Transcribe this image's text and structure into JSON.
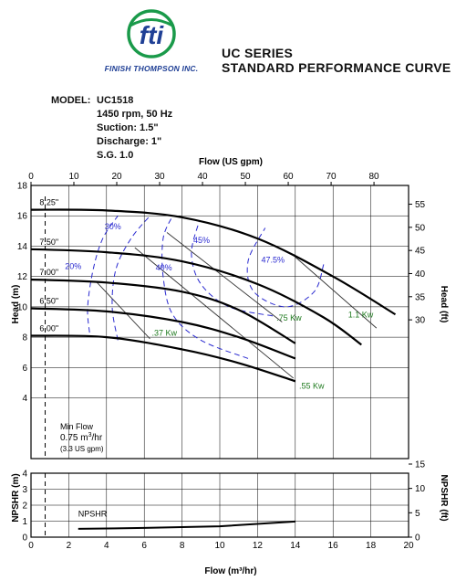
{
  "header": {
    "brand": "FINISH THOMPSON INC.",
    "logo_text": "fti",
    "series": "UC SERIES",
    "title": "STANDARD PERFORMANCE CURVE"
  },
  "model": {
    "label": "MODEL:",
    "name": "UC1518",
    "specs": [
      "1450 rpm, 50 Hz",
      "Suction: 1.5\"",
      "Discharge: 1\"",
      "S.G. 1.0"
    ]
  },
  "colors": {
    "curve": "#000000",
    "efficiency": "#2a2ad0",
    "power": "#1e7a1e",
    "logo_green": "#1a9a4a",
    "logo_blue": "#1f3f95"
  },
  "chart_data": {
    "type": "line",
    "xlabel": "Flow (m³/hr)",
    "x2label": "Flow (US gpm)",
    "ylabel": "Head (m)",
    "y2label": "Head (ft)",
    "xlim": [
      0,
      20
    ],
    "ylim": [
      0,
      18
    ],
    "x_ticks": [
      0,
      2,
      4,
      6,
      8,
      10,
      12,
      14,
      16,
      18,
      20
    ],
    "y_ticks": [
      4,
      6,
      8,
      10,
      12,
      14,
      16,
      18
    ],
    "gpm_ticks": [
      0,
      10,
      20,
      30,
      40,
      50,
      60,
      70,
      80
    ],
    "ft_ticks": [
      30,
      35,
      40,
      45,
      50,
      55
    ],
    "grid": true,
    "impeller_curves": [
      {
        "name": "8.25\"",
        "points": [
          [
            0,
            16.4
          ],
          [
            4,
            16.35
          ],
          [
            8,
            15.9
          ],
          [
            12,
            14.5
          ],
          [
            16,
            12.0
          ],
          [
            19.3,
            9.5
          ]
        ]
      },
      {
        "name": "7.50\"",
        "points": [
          [
            0,
            13.8
          ],
          [
            4,
            13.6
          ],
          [
            8,
            13.0
          ],
          [
            12,
            11.5
          ],
          [
            15.5,
            9.3
          ],
          [
            17.5,
            7.5
          ]
        ]
      },
      {
        "name": "7.00\"",
        "points": [
          [
            0,
            11.8
          ],
          [
            4,
            11.6
          ],
          [
            8,
            11.0
          ],
          [
            11,
            9.8
          ],
          [
            14,
            7.6
          ]
        ]
      },
      {
        "name": "6.50\"",
        "points": [
          [
            0,
            9.9
          ],
          [
            4,
            9.7
          ],
          [
            8,
            9.0
          ],
          [
            11,
            8.0
          ],
          [
            14,
            6.6
          ]
        ]
      },
      {
        "name": "6.00\"",
        "points": [
          [
            0,
            8.1
          ],
          [
            4,
            8.0
          ],
          [
            8,
            7.2
          ],
          [
            11,
            6.3
          ],
          [
            14,
            5.1
          ]
        ]
      }
    ],
    "efficiency_curves": [
      {
        "name": "20%",
        "points": [
          [
            3.1,
            8.3
          ],
          [
            3.0,
            10.0
          ],
          [
            3.3,
            12.5
          ],
          [
            3.8,
            14.5
          ],
          [
            4.6,
            16.0
          ]
        ]
      },
      {
        "name": "30%",
        "points": [
          [
            4.6,
            7.8
          ],
          [
            4.3,
            10.0
          ],
          [
            4.5,
            12.5
          ],
          [
            5.3,
            14.5
          ],
          [
            6.3,
            16.0
          ]
        ]
      },
      {
        "name": "40%",
        "points": [
          [
            11.5,
            6.6
          ],
          [
            9.0,
            7.8
          ],
          [
            7.5,
            9.5
          ],
          [
            7.0,
            12.0
          ],
          [
            7.0,
            14.5
          ],
          [
            7.5,
            16.0
          ]
        ]
      },
      {
        "name": "45%",
        "points": [
          [
            12.8,
            9.4
          ],
          [
            10.5,
            10.0
          ],
          [
            9.0,
            11.5
          ],
          [
            8.5,
            13.5
          ],
          [
            8.9,
            15.6
          ]
        ]
      },
      {
        "name": "47.5%",
        "points": [
          [
            15.5,
            12.8
          ],
          [
            15.0,
            11.0
          ],
          [
            13.5,
            10.0
          ],
          [
            11.8,
            11.0
          ],
          [
            11.5,
            13.0
          ],
          [
            12.4,
            15.2
          ]
        ]
      }
    ],
    "power_lines": [
      {
        "name": ".37 Kw",
        "points": [
          [
            3.5,
            11.6
          ],
          [
            6.3,
            7.9
          ]
        ]
      },
      {
        "name": ".55 Kw",
        "points": [
          [
            5.5,
            13.9
          ],
          [
            13.9,
            5.3
          ]
        ]
      },
      {
        "name": ".75 Kw",
        "points": [
          [
            7.2,
            14.9
          ],
          [
            13.3,
            9.0
          ]
        ]
      },
      {
        "name": "1.1 Kw",
        "points": [
          [
            13.8,
            13.5
          ],
          [
            18.3,
            8.6
          ]
        ]
      }
    ],
    "min_flow_x": 0.75,
    "min_flow_note": {
      "line1": "Min Flow",
      "line2a": "0.75 m",
      "line2b": "3",
      "line2c": "/hr",
      "line3": "(3.3 US gpm)"
    },
    "npshr": {
      "ylabel": "NPSHR (m)",
      "y2label": "NPSHR (ft)",
      "ylim": [
        0,
        4
      ],
      "y_ticks": [
        0,
        1,
        2,
        3,
        4
      ],
      "ft_ticks": [
        0,
        5,
        10,
        15
      ],
      "label": "NPSHR",
      "points": [
        [
          2.5,
          0.52
        ],
        [
          6,
          0.58
        ],
        [
          10,
          0.68
        ],
        [
          14,
          0.98
        ]
      ]
    }
  }
}
